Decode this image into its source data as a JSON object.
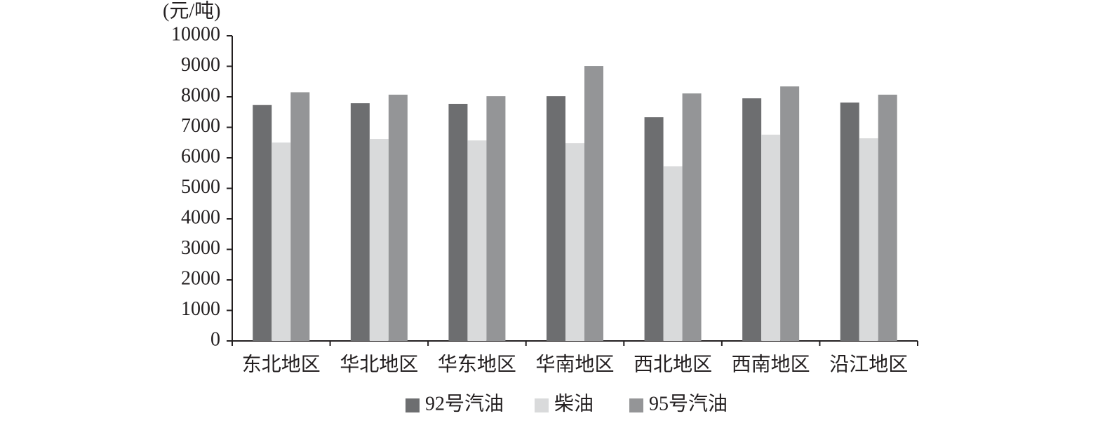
{
  "chart_data": {
    "type": "bar",
    "y_label": "(元/吨)",
    "categories": [
      "东北地区",
      "华北地区",
      "华东地区",
      "华南地区",
      "西北地区",
      "西南地区",
      "沿江地区"
    ],
    "series": [
      {
        "name": "92号汽油",
        "color": "#6d6e70",
        "values": [
          7730,
          7790,
          7770,
          8020,
          7330,
          7950,
          7810
        ]
      },
      {
        "name": "柴油",
        "color": "#d9dadb",
        "values": [
          6500,
          6620,
          6570,
          6480,
          5720,
          6760,
          6640
        ]
      },
      {
        "name": "95号汽油",
        "color": "#949597",
        "values": [
          8150,
          8070,
          8020,
          9010,
          8110,
          8340,
          8070
        ]
      }
    ],
    "ylim": [
      0,
      10000
    ],
    "yticks": [
      0,
      1000,
      2000,
      3000,
      4000,
      5000,
      6000,
      7000,
      8000,
      9000,
      10000
    ],
    "legend": "bottom"
  }
}
